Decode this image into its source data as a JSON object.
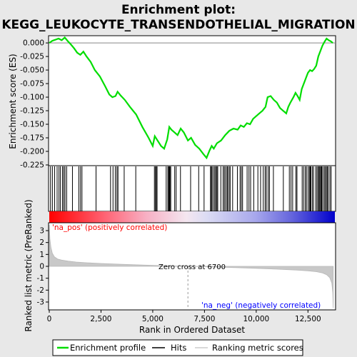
{
  "chart_data": {
    "type": "line",
    "title_line1": "Enrichment plot:",
    "title_line2": "KEGG_LEUKOCYTE_TRANSENDOTHELIAL_MIGRATION",
    "xlabel": "Rank in Ordered Dataset",
    "ylabel_top": "Enrichment score (ES)",
    "ylabel_bottom": "Ranked list metric (PreRanked)",
    "xlim": [
      0,
      13800
    ],
    "x_ticks": [
      0,
      2500,
      5000,
      7500,
      10000,
      12500
    ],
    "x_tick_labels": [
      "0",
      "2,500",
      "5,000",
      "7,500",
      "10,000",
      "12,500"
    ],
    "es_ylim": [
      -0.225,
      0.012
    ],
    "es_ticks": [
      0.0,
      -0.025,
      -0.05,
      -0.075,
      -0.1,
      -0.125,
      -0.15,
      -0.175,
      -0.2,
      -0.225
    ],
    "es_tick_labels": [
      "0.000",
      "-0.025",
      "-0.050",
      "-0.075",
      "-0.100",
      "-0.125",
      "-0.150",
      "-0.175",
      "-0.200",
      "-0.225"
    ],
    "metric_ylim": [
      -3.6,
      3.6
    ],
    "metric_ticks": [
      3,
      2,
      1,
      0,
      -1,
      -2,
      -3
    ],
    "metric_tick_labels": [
      "3",
      "2",
      "1",
      "0",
      "-1",
      "-2",
      "-3"
    ],
    "es_curve": {
      "name": "Enrichment profile",
      "color": "#00dd00",
      "x": [
        0,
        150,
        300,
        450,
        600,
        750,
        900,
        1050,
        1200,
        1350,
        1500,
        1650,
        1800,
        2000,
        2200,
        2450,
        2700,
        2900,
        3050,
        3200,
        3300,
        3450,
        3650,
        3900,
        4200,
        4500,
        4800,
        5000,
        5100,
        5200,
        5400,
        5550,
        5700,
        5800,
        5900,
        6050,
        6200,
        6350,
        6500,
        6700,
        6850,
        7050,
        7250,
        7450,
        7600,
        7750,
        7850,
        7950,
        8100,
        8300,
        8500,
        8700,
        8900,
        9100,
        9250,
        9400,
        9550,
        9700,
        9850,
        10000,
        10150,
        10300,
        10450,
        10550,
        10700,
        10850,
        11000,
        11150,
        11300,
        11450,
        11550,
        11650,
        11800,
        11900,
        12000,
        12100,
        12200,
        12300,
        12400,
        12500,
        12600,
        12700,
        12800,
        12900,
        13000,
        13100,
        13200,
        13300,
        13400,
        13500,
        13600,
        13700
      ],
      "y": [
        0.0,
        0.004,
        0.006,
        0.008,
        0.005,
        0.01,
        0.003,
        -0.003,
        -0.01,
        -0.018,
        -0.022,
        -0.016,
        -0.025,
        -0.035,
        -0.05,
        -0.062,
        -0.08,
        -0.095,
        -0.1,
        -0.098,
        -0.09,
        -0.097,
        -0.105,
        -0.118,
        -0.132,
        -0.155,
        -0.175,
        -0.19,
        -0.172,
        -0.178,
        -0.19,
        -0.195,
        -0.178,
        -0.155,
        -0.16,
        -0.165,
        -0.17,
        -0.158,
        -0.165,
        -0.18,
        -0.175,
        -0.188,
        -0.195,
        -0.205,
        -0.212,
        -0.198,
        -0.19,
        -0.195,
        -0.185,
        -0.18,
        -0.17,
        -0.162,
        -0.158,
        -0.16,
        -0.152,
        -0.155,
        -0.148,
        -0.15,
        -0.14,
        -0.135,
        -0.13,
        -0.125,
        -0.118,
        -0.1,
        -0.098,
        -0.105,
        -0.11,
        -0.12,
        -0.125,
        -0.13,
        -0.118,
        -0.11,
        -0.1,
        -0.092,
        -0.098,
        -0.105,
        -0.085,
        -0.075,
        -0.065,
        -0.055,
        -0.05,
        -0.052,
        -0.048,
        -0.042,
        -0.025,
        -0.015,
        -0.005,
        0.002,
        0.008,
        0.005,
        0.003,
        0.0
      ]
    },
    "hits": [
      60,
      150,
      260,
      380,
      470,
      540,
      640,
      700,
      760,
      840,
      1120,
      1430,
      1510,
      1580,
      2260,
      2960,
      3080,
      3190,
      3270,
      3320,
      3620,
      4180,
      5080,
      5130,
      5170,
      5210,
      5650,
      5730,
      5770,
      5800,
      5830,
      5870,
      6060,
      6130,
      6340,
      6830,
      7220,
      7480,
      7790,
      7830,
      7870,
      7940,
      8000,
      8050,
      8100,
      8140,
      8290,
      8400,
      8460,
      8520,
      8590,
      8620,
      8690,
      8740,
      8860,
      9090,
      9220,
      9280,
      9340,
      9560,
      9650,
      9730,
      9880,
      10080,
      10210,
      10340,
      10430,
      10490,
      10580,
      10640,
      10830,
      11310,
      11600,
      11680,
      11760,
      11920,
      11970,
      12220,
      12290,
      12370,
      12430,
      12510,
      12570,
      12610,
      12640,
      12710,
      12770,
      12880,
      12940,
      13000,
      13040,
      13080,
      13130,
      13160,
      13210,
      13280,
      13330,
      13390,
      13430,
      13480,
      13560,
      13620
    ],
    "metric_curve": {
      "name": "Ranking metric scores",
      "color": "#cccccc",
      "x": [
        0,
        30,
        80,
        150,
        250,
        400,
        600,
        900,
        1300,
        1800,
        2500,
        3500,
        4500,
        5500,
        6700,
        8000,
        9000,
        10000,
        11000,
        12000,
        12500,
        12900,
        13200,
        13400,
        13550,
        13650,
        13700,
        13720
      ],
      "y": [
        3.5,
        2.3,
        1.6,
        1.1,
        0.8,
        0.62,
        0.52,
        0.44,
        0.36,
        0.3,
        0.24,
        0.17,
        0.11,
        0.05,
        0.0,
        -0.06,
        -0.11,
        -0.17,
        -0.24,
        -0.32,
        -0.38,
        -0.45,
        -0.55,
        -0.7,
        -0.95,
        -1.4,
        -2.2,
        -3.5
      ]
    },
    "pos_label": "'na_pos' (positively correlated)",
    "neg_label": "'na_neg' (negatively correlated)",
    "pos_color": "#ff0000",
    "neg_color": "#0000ff",
    "zero_cross_label": "Zero cross at 6700",
    "zero_cross": 6700,
    "legend": {
      "placement": "bottom",
      "items": [
        {
          "label": "Enrichment profile",
          "color": "#00dd00"
        },
        {
          "label": "Hits",
          "color": "#000000"
        },
        {
          "label": "Ranking metric scores",
          "color": "#cccccc"
        }
      ]
    }
  }
}
